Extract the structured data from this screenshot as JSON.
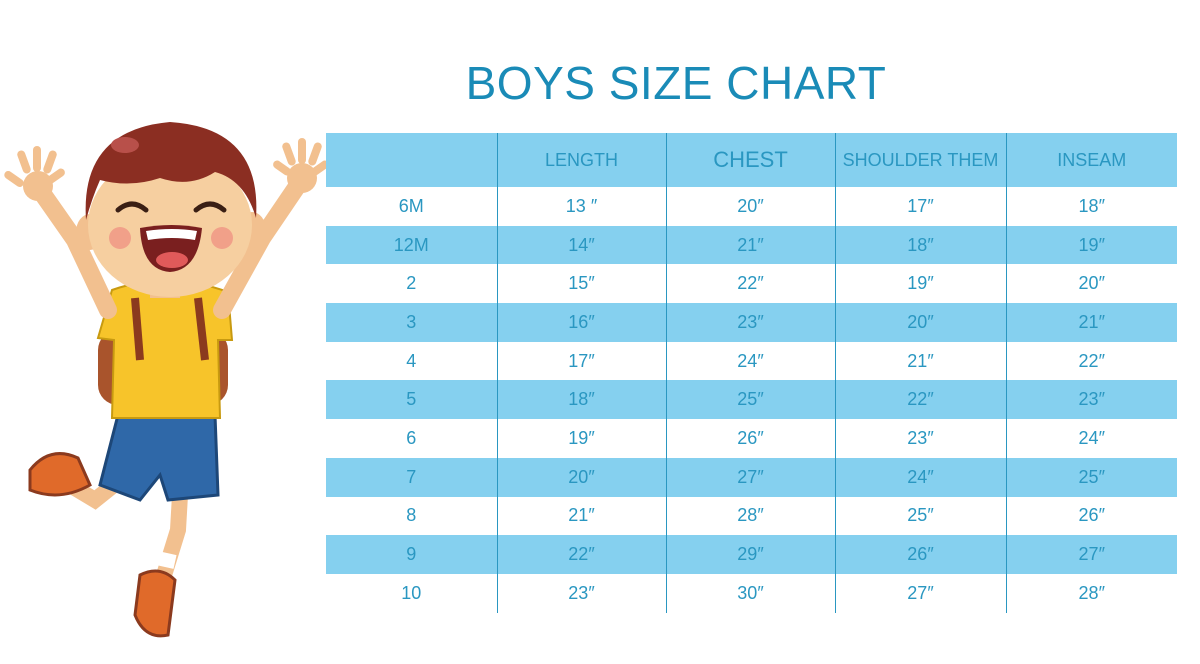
{
  "title": "BOYS SIZE CHART",
  "headers": [
    "",
    "LENGTH",
    "CHEST",
    "SHOULDER THEM",
    "INSEAM"
  ],
  "rows": [
    [
      "6M",
      "13 ″",
      "20″",
      "17″",
      "18″"
    ],
    [
      "12M",
      "14″",
      "21″",
      "18″",
      "19″"
    ],
    [
      "2",
      "15″",
      "22″",
      "19″",
      "20″"
    ],
    [
      "3",
      "16″",
      "23″",
      "20″",
      "21″"
    ],
    [
      "4",
      "17″",
      "24″",
      "21″",
      "22″"
    ],
    [
      "5",
      "18″",
      "25″",
      "22″",
      "23″"
    ],
    [
      "6",
      "19″",
      "26″",
      "23″",
      "24″"
    ],
    [
      "7",
      "20″",
      "27″",
      "24″",
      "25″"
    ],
    [
      "8",
      "21″",
      "28″",
      "25″",
      "26″"
    ],
    [
      "9",
      "22″",
      "29″",
      "26″",
      "27″"
    ],
    [
      "10",
      "23″",
      "30″",
      "27″",
      "28″"
    ]
  ],
  "colors": {
    "title": "#1a8bb7",
    "stripe": "#85d0ef",
    "text": "#2a97c1"
  },
  "illustration": "happy-jumping-boy-with-backpack"
}
